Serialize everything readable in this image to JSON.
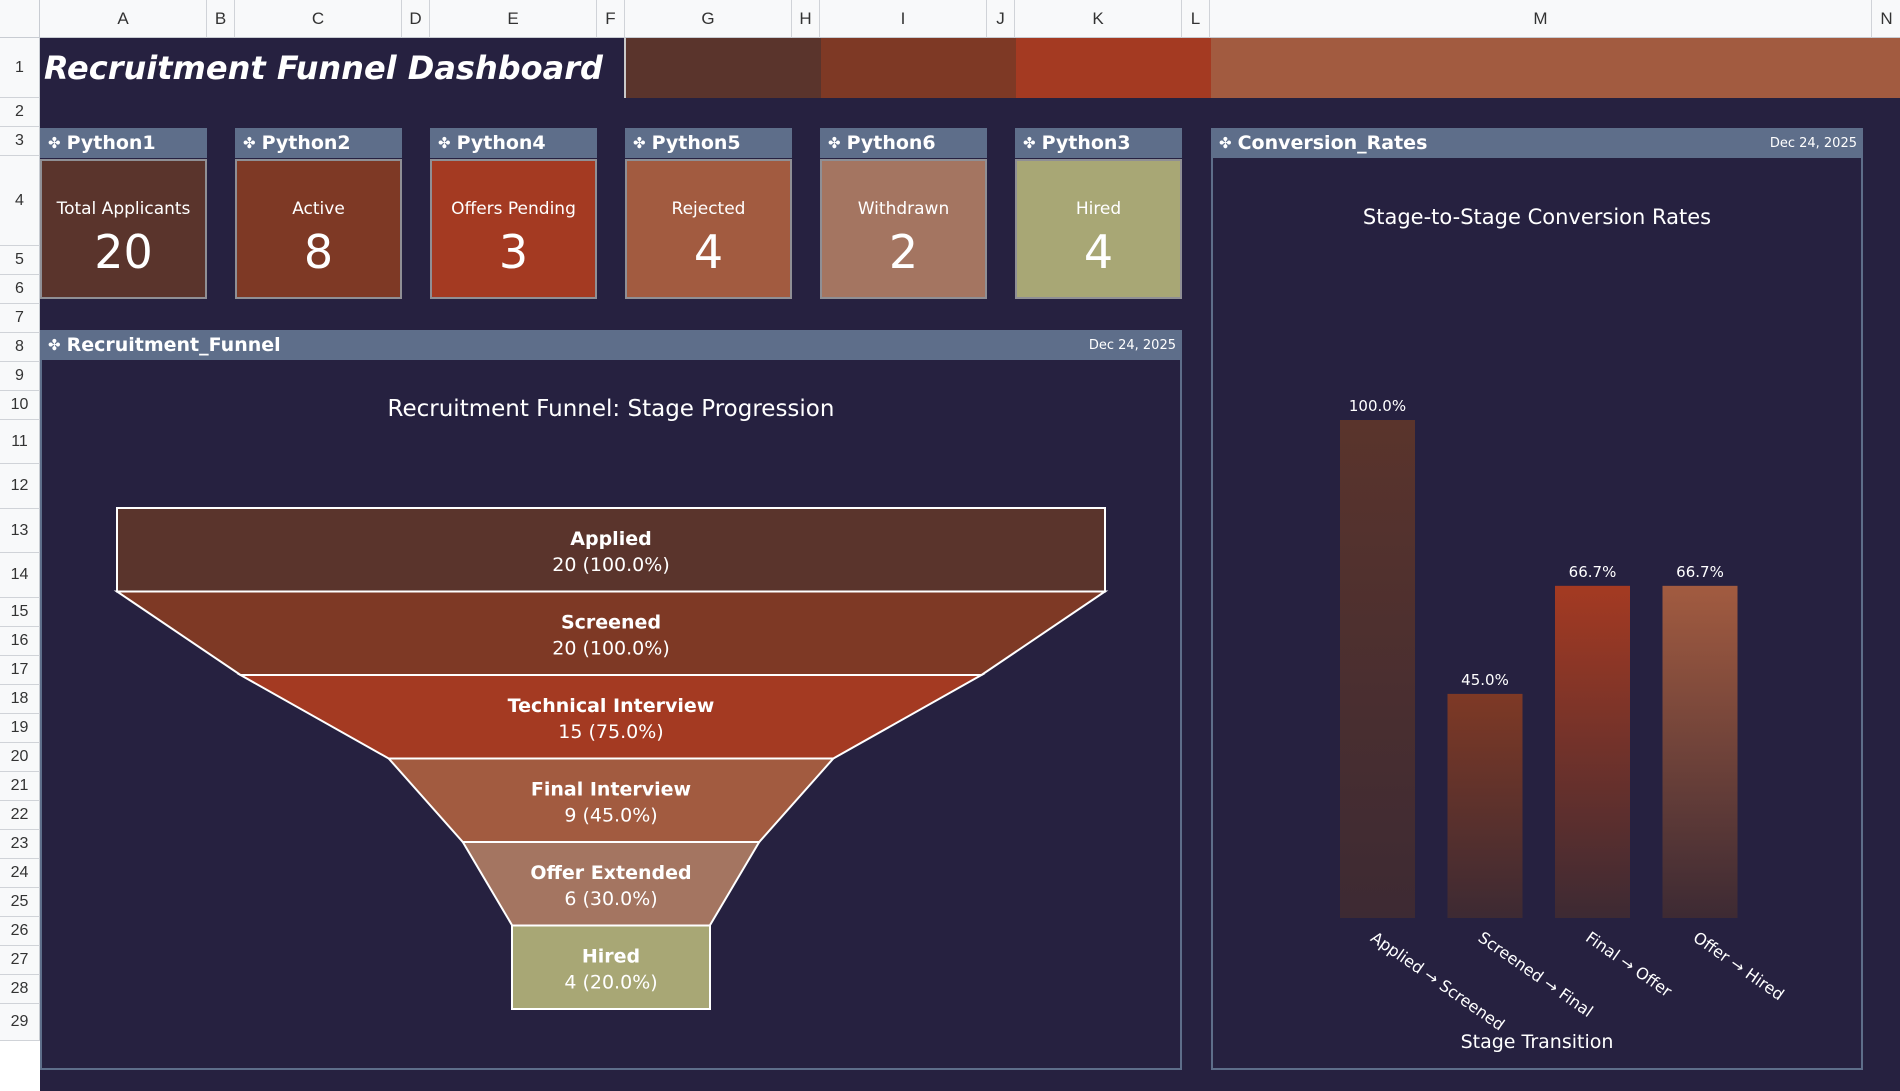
{
  "columns": [
    "A",
    "B",
    "C",
    "D",
    "E",
    "F",
    "G",
    "H",
    "I",
    "J",
    "K",
    "L",
    "M",
    "N"
  ],
  "rows": [
    "1",
    "2",
    "3",
    "4",
    "5",
    "6",
    "7",
    "8",
    "9",
    "10",
    "11",
    "12",
    "13",
    "14",
    "15",
    "16",
    "17",
    "18",
    "19",
    "20",
    "21",
    "22",
    "23",
    "24",
    "25",
    "26",
    "27",
    "28",
    "29"
  ],
  "title": "Recruitment Funnel Dashboard",
  "colors": {
    "background": "#262140",
    "card_header": "#5e6e8a",
    "band": [
      "#5a342c",
      "#7e3925",
      "#a43a22",
      "#a25b40"
    ],
    "stages": [
      "#5a342c",
      "#7e3925",
      "#a43a22",
      "#a25b40",
      "#a47561",
      "#a8a775"
    ]
  },
  "kpis": [
    {
      "header": "Python1",
      "label": "Total Applicants",
      "value": "20",
      "color": "#5a342c"
    },
    {
      "header": "Python2",
      "label": "Active",
      "value": "8",
      "color": "#7e3925"
    },
    {
      "header": "Python4",
      "label": "Offers Pending",
      "value": "3",
      "color": "#a43a22"
    },
    {
      "header": "Python5",
      "label": "Rejected",
      "value": "4",
      "color": "#a25b40"
    },
    {
      "header": "Python6",
      "label": "Withdrawn",
      "value": "2",
      "color": "#a47561"
    },
    {
      "header": "Python3",
      "label": "Hired",
      "value": "4",
      "color": "#a8a775"
    }
  ],
  "funnel_panel": {
    "header": "Recruitment_Funnel",
    "date": "Dec 24, 2025"
  },
  "conversion_panel": {
    "header": "Conversion_Rates",
    "date": "Dec 24, 2025"
  },
  "chart_data": [
    {
      "type": "funnel",
      "title": "Recruitment Funnel: Stage Progression",
      "categories": [
        "Applied",
        "Screened",
        "Technical Interview",
        "Final Interview",
        "Offer Extended",
        "Hired"
      ],
      "values": [
        20,
        20,
        15,
        9,
        6,
        4
      ],
      "labels": [
        "20 (100.0%)",
        "20 (100.0%)",
        "15 (75.0%)",
        "9 (45.0%)",
        "6 (30.0%)",
        "4 (20.0%)"
      ]
    },
    {
      "type": "bar",
      "title": "Stage-to-Stage Conversion Rates",
      "xlabel": "Stage Transition",
      "ylabel": "",
      "categories": [
        "Applied → Screened",
        "Screened → Final",
        "Final → Offer",
        "Offer → Hired"
      ],
      "values": [
        100.0,
        45.0,
        66.7,
        66.7
      ],
      "data_labels": [
        "100.0%",
        "45.0%",
        "66.7%",
        "66.7%"
      ],
      "ylim": [
        0,
        100
      ],
      "grid": false,
      "legend": "none"
    }
  ]
}
